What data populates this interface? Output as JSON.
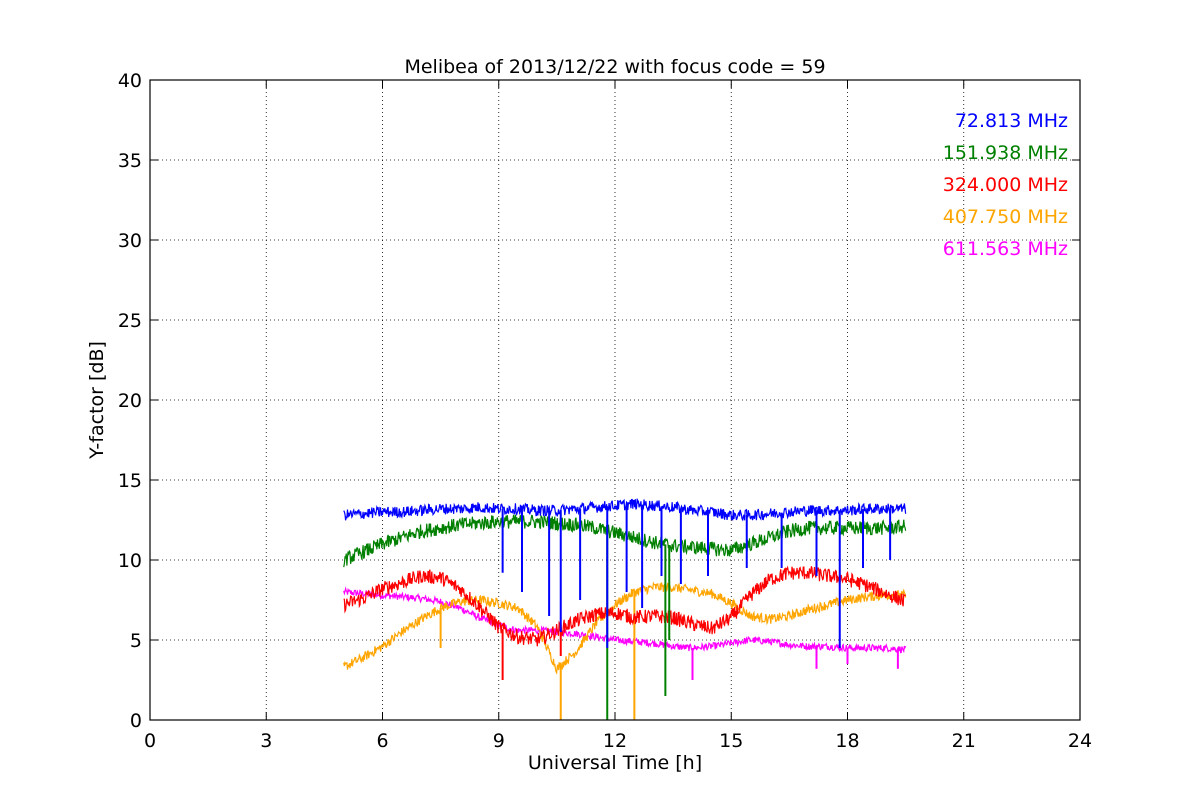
{
  "chart_data": {
    "type": "line",
    "title": "Melibea of 2013/12/22 with focus code = 59",
    "xlabel": "Universal Time [h]",
    "ylabel": "Y-factor [dB]",
    "xlim": [
      0,
      24
    ],
    "ylim": [
      0,
      40
    ],
    "xticks": [
      0,
      3,
      6,
      9,
      12,
      15,
      18,
      21,
      24
    ],
    "yticks": [
      0,
      5,
      10,
      15,
      20,
      25,
      30,
      35,
      40
    ],
    "grid": true,
    "legend_position": "top-right",
    "series": [
      {
        "name": "72.813 MHz",
        "color": "#0000ff",
        "x": [
          5.0,
          5.5,
          6.0,
          6.5,
          7.0,
          7.5,
          8.0,
          8.5,
          9.0,
          9.5,
          10.0,
          10.5,
          11.0,
          11.5,
          12.0,
          12.5,
          13.0,
          13.5,
          14.0,
          14.5,
          15.0,
          15.5,
          16.0,
          16.5,
          17.0,
          17.5,
          18.0,
          18.5,
          19.0,
          19.5
        ],
        "y": [
          12.8,
          12.9,
          13.0,
          13.0,
          13.1,
          13.2,
          13.2,
          13.3,
          13.2,
          13.2,
          13.1,
          13.1,
          13.2,
          13.3,
          13.4,
          13.5,
          13.4,
          13.3,
          13.1,
          13.0,
          12.8,
          12.8,
          12.9,
          13.0,
          13.1,
          13.1,
          13.1,
          13.2,
          13.2,
          13.2
        ],
        "dips": [
          [
            9.1,
            9.2
          ],
          [
            9.6,
            8.0
          ],
          [
            10.3,
            6.5
          ],
          [
            10.6,
            5.5
          ],
          [
            11.1,
            7.5
          ],
          [
            11.8,
            4.5
          ],
          [
            12.3,
            8.0
          ],
          [
            12.7,
            7.0
          ],
          [
            13.2,
            9.0
          ],
          [
            13.7,
            8.5
          ],
          [
            14.4,
            9.0
          ],
          [
            15.4,
            9.5
          ],
          [
            16.3,
            9.5
          ],
          [
            17.2,
            9.0
          ],
          [
            17.8,
            4.5
          ],
          [
            18.4,
            9.5
          ],
          [
            19.1,
            10.0
          ]
        ]
      },
      {
        "name": "151.938 MHz",
        "color": "#008000",
        "x": [
          5.0,
          5.5,
          6.0,
          6.5,
          7.0,
          7.5,
          8.0,
          8.5,
          9.0,
          9.5,
          10.0,
          10.5,
          11.0,
          11.5,
          12.0,
          12.5,
          13.0,
          13.5,
          14.0,
          14.5,
          15.0,
          15.5,
          16.0,
          16.5,
          17.0,
          17.5,
          18.0,
          18.5,
          19.0,
          19.5
        ],
        "y": [
          10.0,
          10.5,
          11.0,
          11.4,
          11.8,
          12.0,
          12.2,
          12.3,
          12.4,
          12.4,
          12.4,
          12.3,
          12.2,
          12.0,
          11.7,
          11.4,
          11.1,
          10.9,
          10.8,
          10.7,
          10.6,
          11.0,
          11.4,
          11.8,
          12.0,
          12.0,
          12.0,
          12.0,
          12.0,
          12.1
        ],
        "dips": [
          [
            11.8,
            0.0
          ],
          [
            13.3,
            1.5
          ],
          [
            13.4,
            5.0
          ]
        ]
      },
      {
        "name": "324.000 MHz",
        "color": "#ff0000",
        "x": [
          5.0,
          5.5,
          6.0,
          6.5,
          7.0,
          7.5,
          8.0,
          8.5,
          9.0,
          9.5,
          10.0,
          10.5,
          11.0,
          11.5,
          12.0,
          12.5,
          13.0,
          13.5,
          14.0,
          14.5,
          15.0,
          15.5,
          16.0,
          16.5,
          17.0,
          17.5,
          18.0,
          18.5,
          19.0,
          19.5
        ],
        "y": [
          7.2,
          7.6,
          8.2,
          8.6,
          9.0,
          8.9,
          8.2,
          7.1,
          5.8,
          5.2,
          5.0,
          5.6,
          6.2,
          6.6,
          6.7,
          6.4,
          6.5,
          6.4,
          6.0,
          5.7,
          6.4,
          7.8,
          8.8,
          9.2,
          9.2,
          9.0,
          8.8,
          8.4,
          7.9,
          7.4
        ],
        "dips": [
          [
            9.1,
            2.5
          ],
          [
            10.6,
            4.0
          ]
        ]
      },
      {
        "name": "407.750 MHz",
        "color": "#ffa500",
        "x": [
          5.0,
          5.5,
          6.0,
          6.5,
          7.0,
          7.5,
          8.0,
          8.5,
          9.0,
          9.5,
          10.0,
          10.5,
          11.0,
          11.5,
          12.0,
          12.5,
          13.0,
          13.5,
          14.0,
          14.5,
          15.0,
          15.5,
          16.0,
          16.5,
          17.0,
          17.5,
          18.0,
          18.5,
          19.0,
          19.5
        ],
        "y": [
          3.3,
          3.9,
          4.6,
          5.5,
          6.3,
          7.0,
          7.4,
          7.5,
          7.3,
          7.0,
          5.8,
          3.2,
          4.3,
          6.0,
          7.2,
          8.0,
          8.3,
          8.3,
          8.1,
          7.9,
          7.3,
          6.5,
          6.3,
          6.5,
          6.9,
          7.2,
          7.5,
          7.7,
          7.8,
          7.8
        ],
        "dips": [
          [
            7.5,
            4.5
          ],
          [
            10.6,
            0.0
          ],
          [
            12.5,
            0.0
          ]
        ]
      },
      {
        "name": "611.563 MHz",
        "color": "#ff00ff",
        "x": [
          5.0,
          5.5,
          6.0,
          6.5,
          7.0,
          7.5,
          8.0,
          8.5,
          9.0,
          9.5,
          10.0,
          10.5,
          11.0,
          11.5,
          12.0,
          12.5,
          13.0,
          13.5,
          14.0,
          14.5,
          15.0,
          15.5,
          16.0,
          16.5,
          17.0,
          17.5,
          18.0,
          18.5,
          19.0,
          19.5
        ],
        "y": [
          8.0,
          7.9,
          7.8,
          7.7,
          7.6,
          7.4,
          7.0,
          6.4,
          5.9,
          5.6,
          5.6,
          5.5,
          5.4,
          5.2,
          5.0,
          4.9,
          4.8,
          4.6,
          4.5,
          4.6,
          4.8,
          5.0,
          4.9,
          4.7,
          4.6,
          4.6,
          4.5,
          4.5,
          4.5,
          4.4
        ],
        "dips": [
          [
            14.0,
            2.5
          ],
          [
            17.2,
            3.2
          ],
          [
            18.0,
            3.5
          ],
          [
            19.3,
            3.2
          ]
        ]
      }
    ]
  }
}
